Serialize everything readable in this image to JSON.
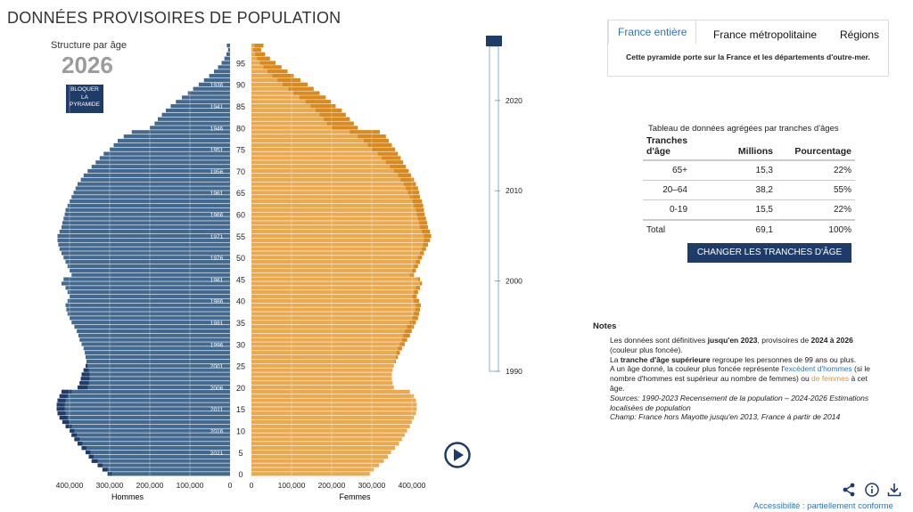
{
  "title": "DONNÉES PROVISOIRES DE POPULATION",
  "pyramid": {
    "subtitle": "Structure par âge",
    "year": "2026"
  },
  "lock_button": {
    "line1": "BLOQUER",
    "line2": "LA",
    "line3": "PYRAMIDE"
  },
  "tabs": [
    {
      "label": "France entière",
      "active": true
    },
    {
      "label": "France métropolitaine",
      "active": false
    },
    {
      "label": "Régions",
      "active": false
    }
  ],
  "tab_description": "Cette pyramide porte sur la France et les départements d'outre-mer.",
  "aggregated_table": {
    "title": "Tableau de données agrégées par tranches d'âges",
    "headers": {
      "age_line1": "Tranches",
      "age_line2": "d'âge",
      "millions": "Millions",
      "percent": "Pourcentage"
    },
    "rows": [
      {
        "age": "65+",
        "millions": "15,3",
        "percent": "22%"
      },
      {
        "age": "20–64",
        "millions": "38,2",
        "percent": "55%"
      },
      {
        "age": "0-19",
        "millions": "15,5",
        "percent": "22%"
      }
    ],
    "total": {
      "age": "Total",
      "millions": "69,1",
      "percent": "100%"
    }
  },
  "change_button": "CHANGER LES TRANCHES D'ÂGE",
  "notes": {
    "title": "Notes",
    "p1_a": "Les données sont définitives ",
    "p1_b": "jusqu'en 2023",
    "p1_c": ", provisoires de ",
    "p1_d": "2024 à 2026",
    "p1_e": " (couleur plus foncée).",
    "p2_a": "La ",
    "p2_b": "tranche d'âge supérieure",
    "p2_c": " regroupe les personnes de 99 ans ou plus.",
    "p3_a": "A un âge donné, la couleur plus foncée représente l'",
    "p3_b": "excédent d'hommes",
    "p3_c": " (si le nombre d'hommes est supérieur au nombre de femmes) ou ",
    "p3_d": "de femmes",
    "p3_e": " à cet âge.",
    "sources": "Sources: 1990-2023 Recensement de la population – 2024-2026 Estimations localisées de population",
    "champ": "Champ: France hors Mayotte jusqu'en 2013, France à partir de 2014"
  },
  "accessibility": "Accessibilité : partiellement conforme",
  "icons": [
    "share-icon",
    "info-icon",
    "download-icon",
    "play-icon"
  ],
  "colors": {
    "men": "#44698f",
    "men_excess": "#1f3c69",
    "women": "#eba94f",
    "women_excess": "#d8891f",
    "accent": "#2f73b8",
    "button": "#1f3c69"
  },
  "chart_data": {
    "type": "population-pyramid",
    "year": "2026",
    "xlabel_left": "Hommes",
    "xlabel_right": "Femmes",
    "x_ticks_men": [
      "400,000",
      "300,000",
      "200,000",
      "100,000",
      "0"
    ],
    "x_ticks_women": [
      "0",
      "100,000",
      "200,000",
      "300,000",
      "400,000"
    ],
    "x_tick_values": [
      400000,
      300000,
      200000,
      100000,
      0
    ],
    "xlim": [
      0,
      500000
    ],
    "age_ticks": [
      0,
      5,
      10,
      15,
      20,
      25,
      30,
      35,
      40,
      45,
      50,
      55,
      60,
      65,
      70,
      75,
      80,
      85,
      90,
      95
    ],
    "birth_year_labels": [
      2021,
      2016,
      2011,
      2006,
      2001,
      1996,
      1991,
      1986,
      1981,
      1976,
      1971,
      1966,
      1961,
      1956,
      1951,
      1946,
      1941,
      1936
    ],
    "timeline": {
      "labels": [
        "2020",
        "2010",
        "2000",
        "1990"
      ],
      "range": [
        1990,
        2026
      ],
      "current": 2026
    },
    "ages": [
      0,
      1,
      2,
      3,
      4,
      5,
      6,
      7,
      8,
      9,
      10,
      11,
      12,
      13,
      14,
      15,
      16,
      17,
      18,
      19,
      20,
      21,
      22,
      23,
      24,
      25,
      26,
      27,
      28,
      29,
      30,
      31,
      32,
      33,
      34,
      35,
      36,
      37,
      38,
      39,
      40,
      41,
      42,
      43,
      44,
      45,
      46,
      47,
      48,
      49,
      50,
      51,
      52,
      53,
      54,
      55,
      56,
      57,
      58,
      59,
      60,
      61,
      62,
      63,
      64,
      65,
      66,
      67,
      68,
      69,
      70,
      71,
      72,
      73,
      74,
      75,
      76,
      77,
      78,
      79,
      80,
      81,
      82,
      83,
      84,
      85,
      86,
      87,
      88,
      89,
      90,
      91,
      92,
      93,
      94,
      95,
      96,
      97,
      98,
      99
    ],
    "men": [
      305000,
      318000,
      330000,
      345000,
      352000,
      360000,
      370000,
      380000,
      388000,
      395000,
      400000,
      410000,
      418000,
      425000,
      430000,
      432000,
      432000,
      430000,
      425000,
      420000,
      380000,
      375000,
      372000,
      370000,
      365000,
      360000,
      358000,
      360000,
      362000,
      365000,
      370000,
      375000,
      378000,
      382000,
      388000,
      395000,
      400000,
      405000,
      408000,
      410000,
      405000,
      400000,
      405000,
      410000,
      420000,
      415000,
      395000,
      400000,
      405000,
      410000,
      415000,
      420000,
      425000,
      428000,
      430000,
      430000,
      425000,
      420000,
      418000,
      415000,
      412000,
      410000,
      405000,
      400000,
      395000,
      390000,
      385000,
      380000,
      372000,
      365000,
      355000,
      345000,
      335000,
      325000,
      315000,
      300000,
      290000,
      280000,
      265000,
      245000,
      200000,
      188000,
      180000,
      170000,
      160000,
      148000,
      135000,
      120000,
      105000,
      92000,
      78000,
      65000,
      52000,
      40000,
      30000,
      21000,
      14000,
      9000,
      5000,
      8000
    ],
    "women": [
      295000,
      305000,
      318000,
      330000,
      340000,
      348000,
      358000,
      368000,
      375000,
      382000,
      388000,
      395000,
      400000,
      405000,
      410000,
      412000,
      412000,
      410000,
      405000,
      395000,
      355000,
      352000,
      350000,
      350000,
      352000,
      355000,
      360000,
      365000,
      370000,
      375000,
      382000,
      388000,
      395000,
      400000,
      405000,
      410000,
      415000,
      418000,
      420000,
      422000,
      418000,
      412000,
      415000,
      420000,
      425000,
      420000,
      405000,
      410000,
      415000,
      420000,
      425000,
      430000,
      435000,
      440000,
      445000,
      448000,
      445000,
      440000,
      438000,
      435000,
      432000,
      430000,
      428000,
      425000,
      420000,
      418000,
      415000,
      410000,
      405000,
      398000,
      392000,
      385000,
      378000,
      372000,
      365000,
      358000,
      350000,
      342000,
      335000,
      320000,
      265000,
      255000,
      245000,
      235000,
      225000,
      210000,
      198000,
      185000,
      170000,
      155000,
      140000,
      122000,
      105000,
      90000,
      75000,
      60000,
      46000,
      34000,
      24000,
      30000
    ]
  }
}
